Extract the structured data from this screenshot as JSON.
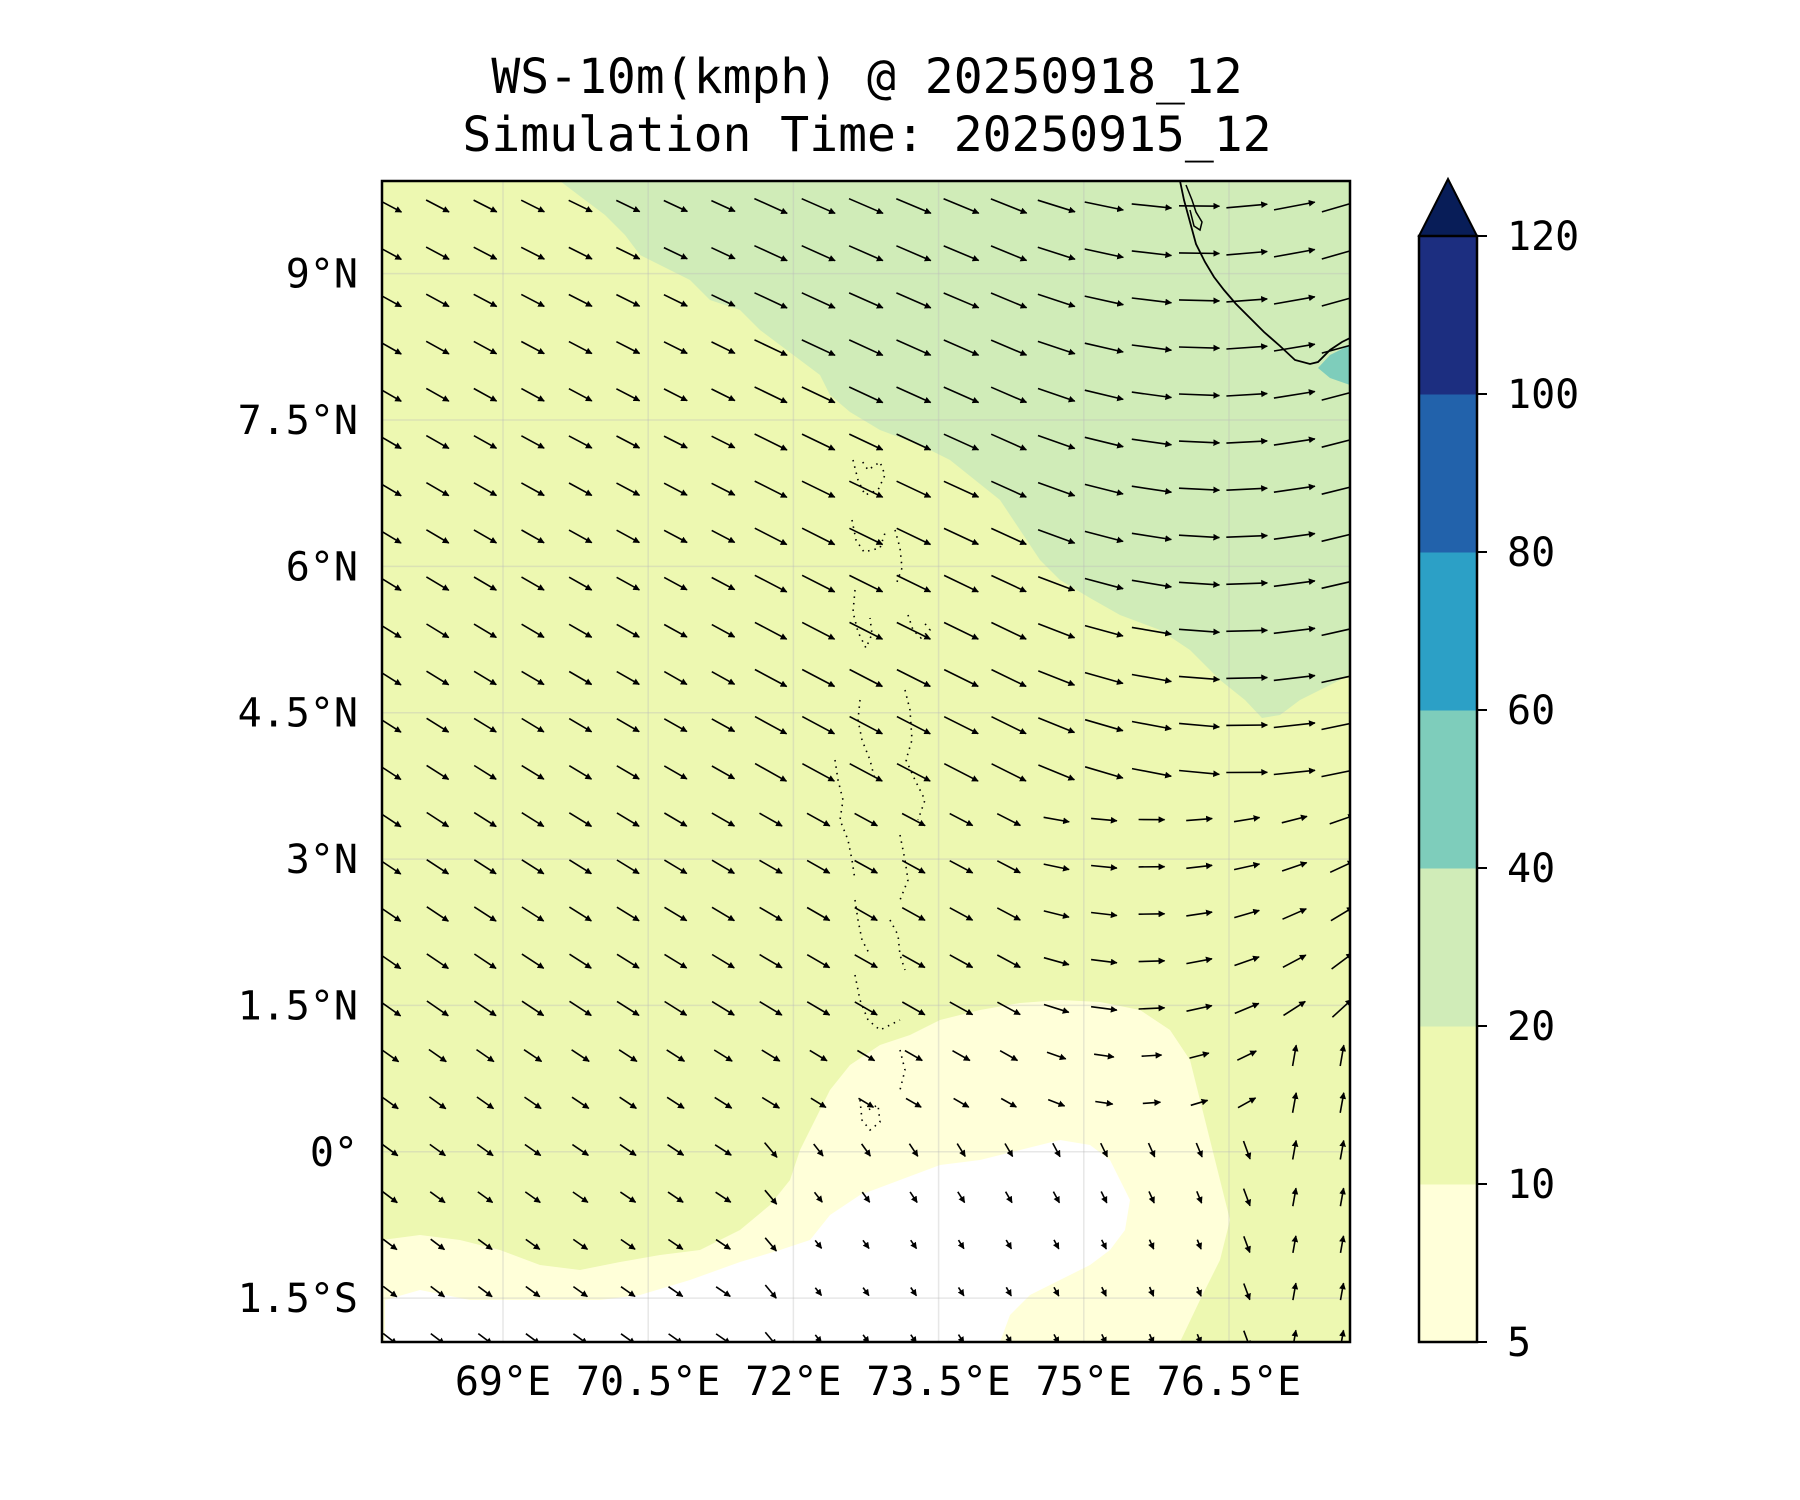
{
  "title_line1": "WS-10m(kmph) @ 20250918_12",
  "title_line2": "Simulation Time: 20250915_12",
  "map": {
    "lon_range": [
      67.75,
      77.75
    ],
    "lat_range": [
      -1.95,
      9.95
    ],
    "lon_ticks": [
      69,
      70.5,
      72,
      73.5,
      75,
      76.5
    ],
    "lon_tick_labels": [
      "69°E",
      "70.5°E",
      "72°E",
      "73.5°E",
      "75°E",
      "76.5°E"
    ],
    "lat_ticks": [
      9,
      7.5,
      6,
      4.5,
      3,
      1.5,
      0,
      -1.5
    ],
    "lat_tick_labels": [
      "9°N",
      "7.5°N",
      "6°N",
      "4.5°N",
      "3°N",
      "1.5°N",
      "0°",
      "1.5°S"
    ],
    "gridlines": true,
    "features": [
      "India southwest coastline",
      "Maldives atolls (dotted)"
    ]
  },
  "colorbar": {
    "levels": [
      5,
      10,
      20,
      40,
      60,
      80,
      100,
      120
    ],
    "tick_labels": [
      "5",
      "10",
      "20",
      "40",
      "60",
      "80",
      "100",
      "120"
    ],
    "colors": [
      "#ffffd9",
      "#edf8b1",
      "#d0ecb8",
      "#7ecdbb",
      "#2ca0c6",
      "#2262ab",
      "#1c2e80",
      "#081d58"
    ],
    "extend": "max"
  },
  "wind": {
    "description": "10 m wind vectors",
    "dominant_speed_class_kmph": "10-20 over most of domain, 20-40 in north-east, 5-10 near equator south-east"
  }
}
